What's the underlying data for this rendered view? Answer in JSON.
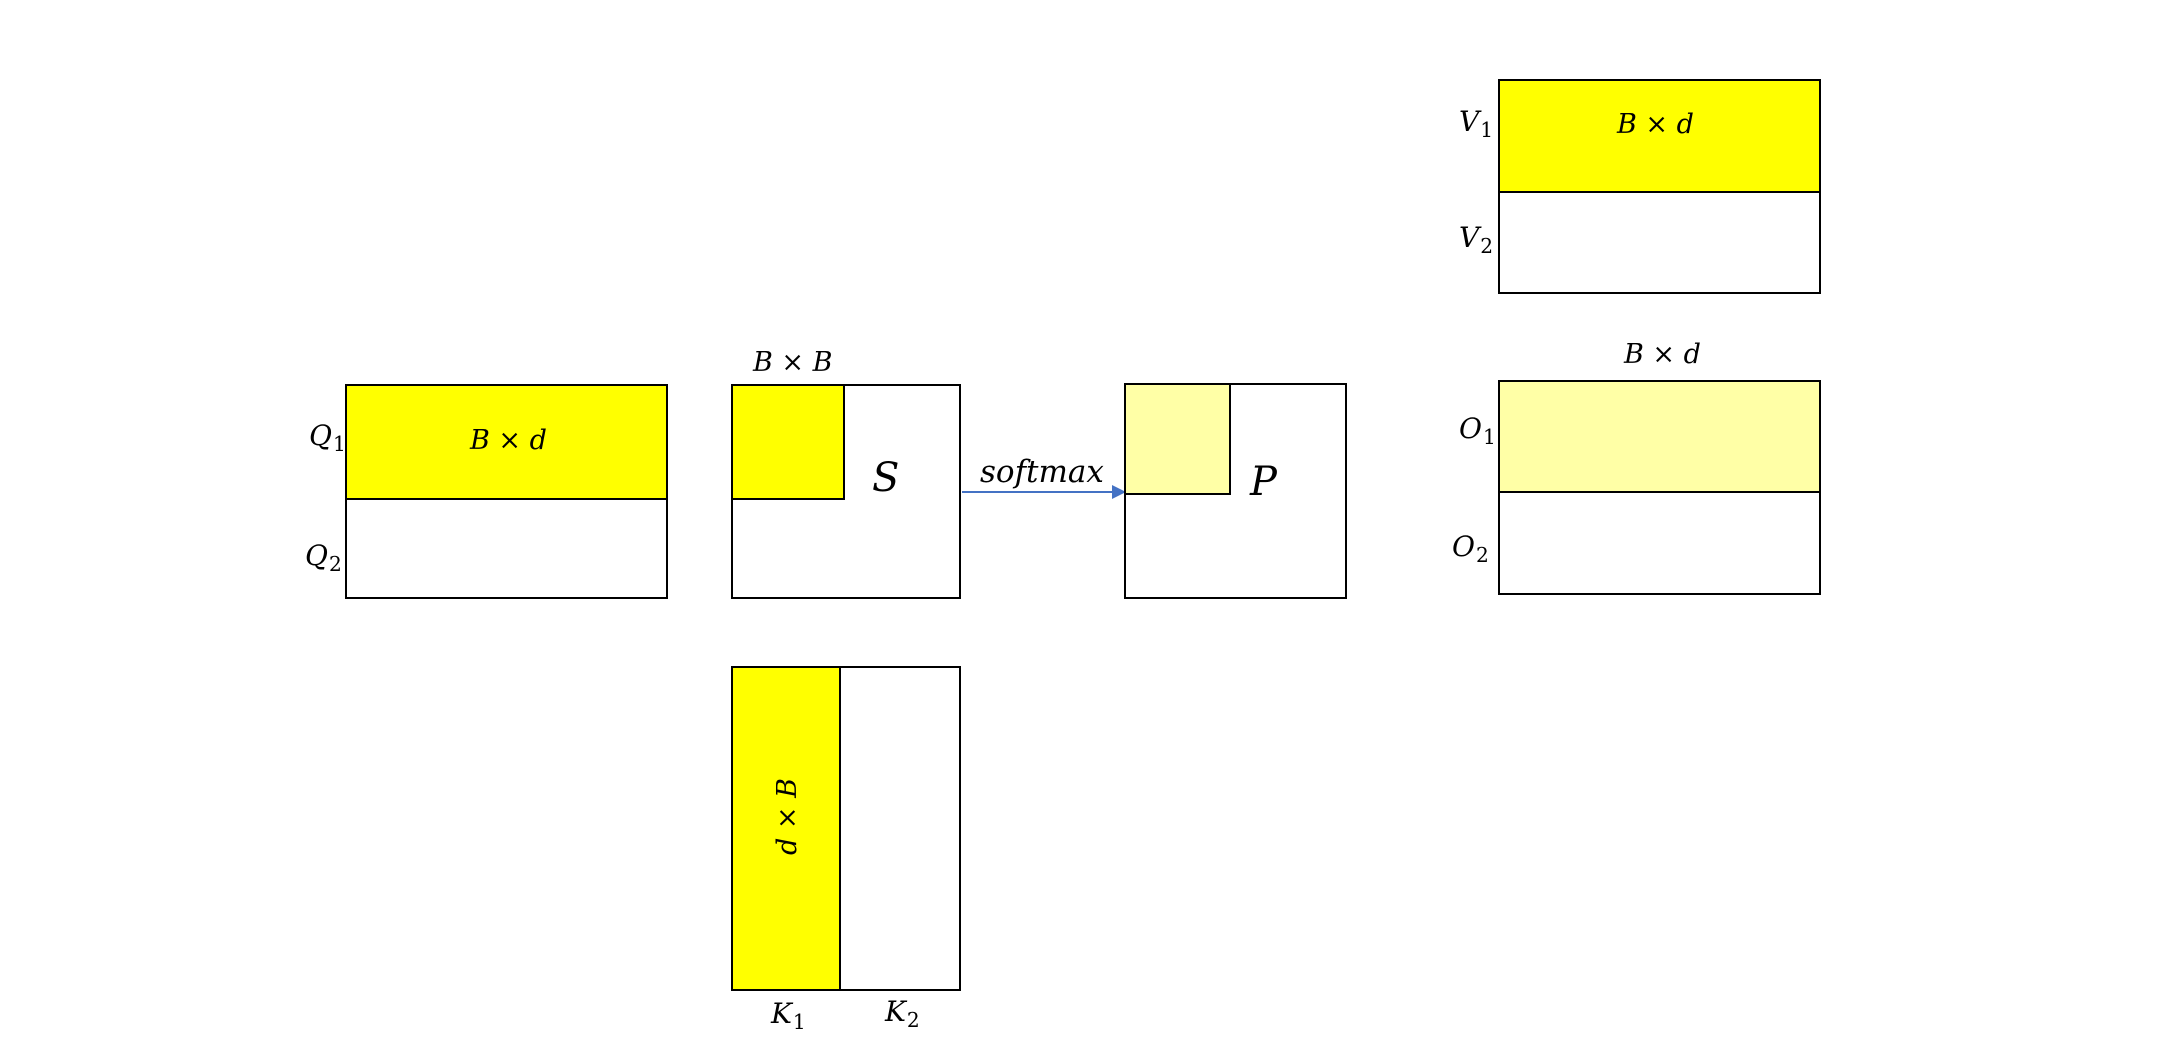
{
  "colors": {
    "block_fill": "#ffff00",
    "block_fill_light": "#ffffa6",
    "outline": "#000000",
    "arrow": "#4472c4"
  },
  "q_matrix": {
    "block_label": "B × d",
    "row1": {
      "name": "Q",
      "sub": "1"
    },
    "row2": {
      "name": "Q",
      "sub": "2"
    }
  },
  "s_matrix": {
    "name": "S",
    "block_label": "B × B"
  },
  "k_matrix": {
    "block_label": "d × B",
    "col1": {
      "name": "K",
      "sub": "1"
    },
    "col2": {
      "name": "K",
      "sub": "2"
    }
  },
  "arrow": {
    "label": "softmax"
  },
  "p_matrix": {
    "name": "P"
  },
  "v_matrix": {
    "block_label": "B × d",
    "row1": {
      "name": "V",
      "sub": "1"
    },
    "row2": {
      "name": "V",
      "sub": "2"
    }
  },
  "o_matrix": {
    "block_label": "B × d",
    "row1": {
      "name": "O",
      "sub": "1"
    },
    "row2": {
      "name": "O",
      "sub": "2"
    }
  }
}
